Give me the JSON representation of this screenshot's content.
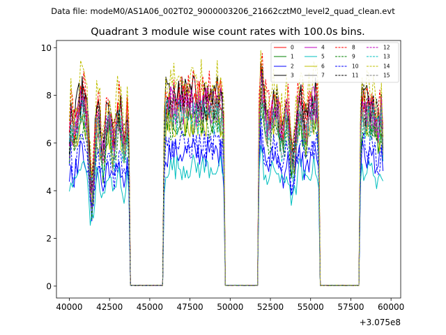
{
  "chart_data": {
    "type": "line",
    "suptitle": "Data file: modeM0/AS1A06_002T02_9000003206_21662cztM0_level2_quad_clean.evt",
    "title": "Quadrant 3 module wise count rates with 100.0s bins.",
    "xlabel": "",
    "ylabel": "",
    "x_offset_text": "+3.075e8",
    "xlim": [
      39200,
      60600
    ],
    "ylim": [
      -0.5,
      10.3
    ],
    "xticks": [
      40000,
      42500,
      45000,
      47500,
      50000,
      52500,
      55000,
      57500,
      60000
    ],
    "xtick_labels": [
      "40000",
      "42500",
      "45000",
      "47500",
      "50000",
      "52500",
      "55000",
      "57500",
      "60000"
    ],
    "yticks": [
      0,
      2,
      4,
      6,
      8,
      10
    ],
    "ytick_labels": [
      "0",
      "2",
      "4",
      "6",
      "8",
      "10"
    ],
    "legend_position": "top-right",
    "legend_columns": 4,
    "x_start": 40000,
    "bin_size": 100,
    "gti_segments": [
      {
        "start": 40000,
        "end": 43700
      },
      {
        "start": 45900,
        "end": 49600
      },
      {
        "start": 51800,
        "end": 55500
      },
      {
        "start": 58100,
        "end": 59500
      }
    ],
    "series": [
      {
        "name": "0",
        "color": "#ff0000",
        "dash": "solid",
        "level": 7.8
      },
      {
        "name": "1",
        "color": "#008000",
        "dash": "solid",
        "level": 7.0
      },
      {
        "name": "2",
        "color": "#0000ff",
        "dash": "solid",
        "level": 5.6
      },
      {
        "name": "3",
        "color": "#000000",
        "dash": "solid",
        "level": 8.0
      },
      {
        "name": "4",
        "color": "#bf00bf",
        "dash": "solid",
        "level": 7.6
      },
      {
        "name": "5",
        "color": "#00bfbf",
        "dash": "solid",
        "level": 5.0
      },
      {
        "name": "6",
        "color": "#bfbf00",
        "dash": "solid",
        "level": 7.0
      },
      {
        "name": "7",
        "color": "#808080",
        "dash": "solid",
        "level": 7.3
      },
      {
        "name": "8",
        "color": "#ff0000",
        "dash": "dashed",
        "level": 8.2
      },
      {
        "name": "9",
        "color": "#008000",
        "dash": "dashed",
        "level": 6.8
      },
      {
        "name": "10",
        "color": "#0000ff",
        "dash": "dashed",
        "level": 5.9
      },
      {
        "name": "11",
        "color": "#000000",
        "dash": "dashed",
        "level": 7.7
      },
      {
        "name": "12",
        "color": "#bf00bf",
        "dash": "dashed",
        "level": 7.5
      },
      {
        "name": "13",
        "color": "#00bfbf",
        "dash": "dashed",
        "level": 7.1
      },
      {
        "name": "14",
        "color": "#bfbf00",
        "dash": "dashed",
        "level": 8.6
      },
      {
        "name": "15",
        "color": "#808080",
        "dash": "dashed",
        "level": 7.2
      }
    ]
  }
}
